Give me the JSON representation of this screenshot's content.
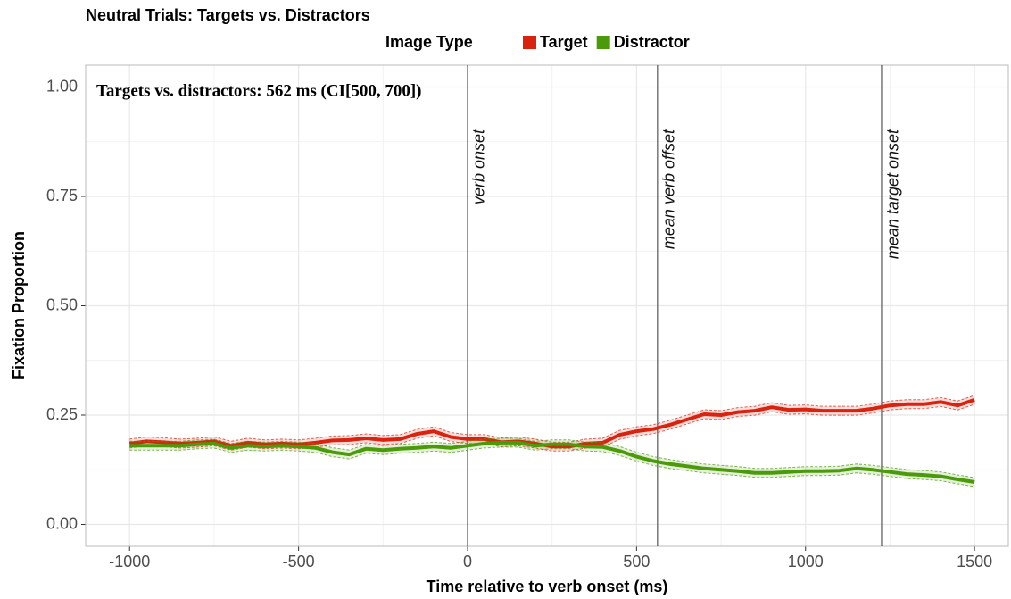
{
  "chart_data": {
    "type": "line",
    "title": "Neutral Trials: Targets vs. Distractors",
    "legend_title": "Image Type",
    "x_label": "Time relative to verb onset (ms)",
    "y_label": "Fixation Proportion",
    "annotation": "Targets vs. distractors: 562 ms (CI[500, 700])",
    "vlines": [
      {
        "x": 0,
        "label": "verb onset"
      },
      {
        "x": 562,
        "label": "mean verb offset"
      },
      {
        "x": 1225,
        "label": "mean target onset"
      }
    ],
    "x": [
      -1000,
      -950,
      -900,
      -850,
      -800,
      -750,
      -700,
      -650,
      -600,
      -550,
      -500,
      -450,
      -400,
      -350,
      -300,
      -250,
      -200,
      -150,
      -100,
      -50,
      0,
      50,
      100,
      150,
      200,
      250,
      300,
      350,
      400,
      450,
      500,
      550,
      600,
      650,
      700,
      750,
      800,
      850,
      900,
      950,
      1000,
      1050,
      1100,
      1150,
      1200,
      1250,
      1300,
      1350,
      1400,
      1450,
      1500
    ],
    "series": [
      {
        "name": "Target",
        "color": "#d9230f",
        "values": [
          0.185,
          0.19,
          0.188,
          0.185,
          0.187,
          0.19,
          0.18,
          0.187,
          0.183,
          0.185,
          0.183,
          0.187,
          0.192,
          0.193,
          0.197,
          0.193,
          0.195,
          0.207,
          0.213,
          0.2,
          0.195,
          0.195,
          0.188,
          0.19,
          0.185,
          0.178,
          0.178,
          0.185,
          0.187,
          0.205,
          0.213,
          0.218,
          0.228,
          0.24,
          0.252,
          0.25,
          0.257,
          0.26,
          0.268,
          0.262,
          0.263,
          0.26,
          0.26,
          0.26,
          0.265,
          0.272,
          0.275,
          0.275,
          0.28,
          0.272,
          0.285
        ]
      },
      {
        "name": "Distractor",
        "color": "#4a9a0a",
        "values": [
          0.18,
          0.18,
          0.18,
          0.18,
          0.183,
          0.185,
          0.175,
          0.18,
          0.178,
          0.18,
          0.178,
          0.175,
          0.165,
          0.16,
          0.173,
          0.17,
          0.173,
          0.175,
          0.178,
          0.175,
          0.18,
          0.185,
          0.187,
          0.187,
          0.18,
          0.183,
          0.183,
          0.178,
          0.177,
          0.168,
          0.155,
          0.145,
          0.138,
          0.133,
          0.128,
          0.125,
          0.122,
          0.118,
          0.118,
          0.12,
          0.122,
          0.122,
          0.123,
          0.128,
          0.125,
          0.12,
          0.115,
          0.113,
          0.11,
          0.103,
          0.097
        ]
      }
    ],
    "xlim": [
      -1130,
      1600
    ],
    "ylim": [
      -0.05,
      1.05
    ],
    "xticks": [
      -1000,
      -500,
      0,
      500,
      1000,
      1500
    ],
    "yticks": [
      {
        "value": 0,
        "label": "0.00"
      },
      {
        "value": 0.25,
        "label": "0.25"
      },
      {
        "value": 0.5,
        "label": "0.50"
      },
      {
        "value": 0.75,
        "label": "0.75"
      },
      {
        "value": 1,
        "label": "1.00"
      }
    ],
    "grid": true
  }
}
